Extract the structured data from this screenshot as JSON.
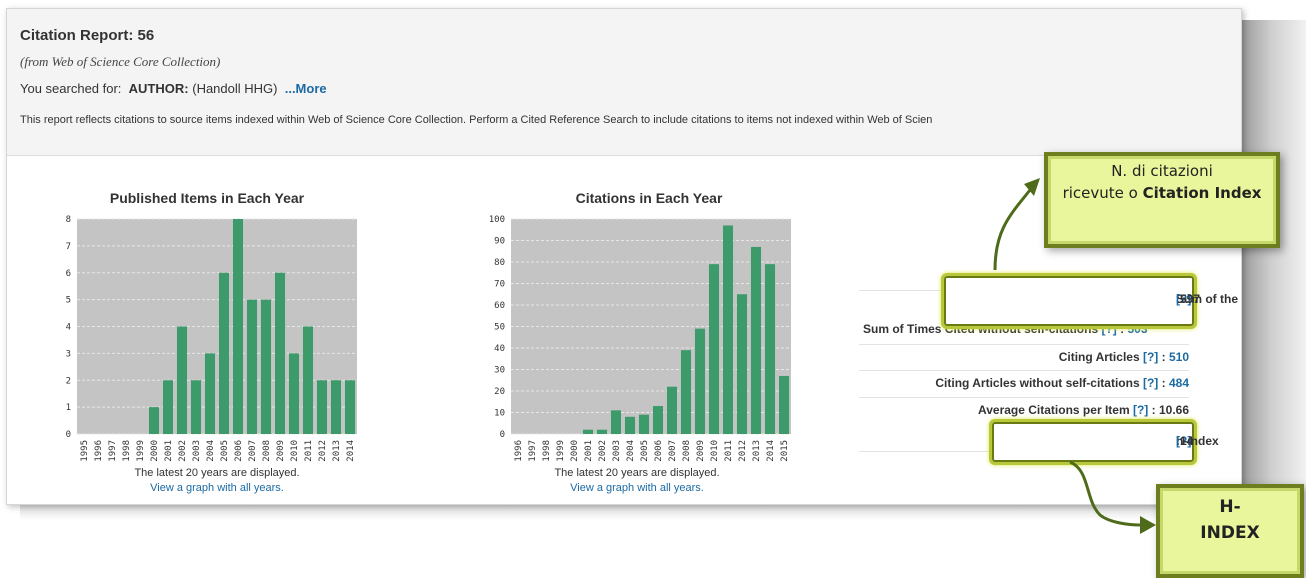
{
  "report": {
    "title": "Citation Report: 56",
    "subtitle": "(from Web of Science Core Collection)",
    "searched_prefix": "You searched for:",
    "searched_field": "AUTHOR:",
    "searched_value": "(Handoll HHG)",
    "more_link": "...More",
    "note": "This report reflects citations to source items indexed within Web of Science Core Collection. Perform a Cited Reference Search to include citations to items not indexed within Web of Scien"
  },
  "chart_data": [
    {
      "type": "bar",
      "title": "Published Items in Each Year",
      "categories": [
        "1995",
        "1996",
        "1997",
        "1998",
        "1999",
        "2000",
        "2001",
        "2002",
        "2003",
        "2004",
        "2005",
        "2006",
        "2007",
        "2008",
        "2009",
        "2010",
        "2011",
        "2012",
        "2013",
        "2014"
      ],
      "values": [
        0,
        0,
        0,
        0,
        0,
        1,
        2,
        4,
        2,
        3,
        6,
        8,
        5,
        5,
        6,
        3,
        4,
        2,
        2,
        2
      ],
      "ylim": [
        0,
        8
      ],
      "yticks": [
        "0",
        "1",
        "2",
        "3",
        "4",
        "5",
        "6",
        "7",
        "8"
      ],
      "caption": "The latest 20 years are displayed.",
      "link": "View a graph with all years.",
      "bar_color": "#3d9a6b",
      "plot_bg": "#c4c4c4"
    },
    {
      "type": "bar",
      "title": "Citations in Each Year",
      "categories": [
        "1996",
        "1997",
        "1998",
        "1999",
        "2000",
        "2001",
        "2002",
        "2003",
        "2004",
        "2005",
        "2006",
        "2007",
        "2008",
        "2009",
        "2010",
        "2011",
        "2012",
        "2013",
        "2014",
        "2015"
      ],
      "values": [
        0,
        0,
        0,
        0,
        0,
        2,
        2,
        11,
        8,
        9,
        13,
        22,
        39,
        49,
        79,
        97,
        65,
        87,
        79,
        27
      ],
      "ylim": [
        0,
        100
      ],
      "yticks": [
        "0",
        "10",
        "20",
        "30",
        "40",
        "50",
        "60",
        "70",
        "80",
        "90",
        "100"
      ],
      "caption": "The latest 20 years are displayed.",
      "link": "View a graph with all years.",
      "bar_color": "#3d9a6b",
      "plot_bg": "#c4c4c4"
    }
  ],
  "metrics": {
    "sum_times_cited": {
      "label": "Sum of the Times Cited",
      "help": "[?]",
      "value": "597"
    },
    "sum_without_self": {
      "label": "Sum of Times Cited without self-citations",
      "help": "[?]",
      "value": "503"
    },
    "citing_articles": {
      "label": "Citing Articles",
      "help": "[?]",
      "value": "510"
    },
    "citing_without_self": {
      "label": "Citing Articles without self-citations",
      "help": "[?]",
      "value": "484"
    },
    "avg_citations": {
      "label": "Average Citations per Item",
      "help": "[?]",
      "value": "10.66"
    },
    "h_index": {
      "label": "h-index",
      "help": "[?]",
      "value": "14"
    }
  },
  "callouts": {
    "citation_line1": "N. di citazioni",
    "citation_line2": "ricevute o",
    "citation_bold": "Citation Index",
    "hindex_line1": "H-",
    "hindex_line2": "INDEX",
    "fill_color": "#e9f69b",
    "border_color": "#6d7e1f",
    "arrow_color": "#4e6b1a"
  }
}
